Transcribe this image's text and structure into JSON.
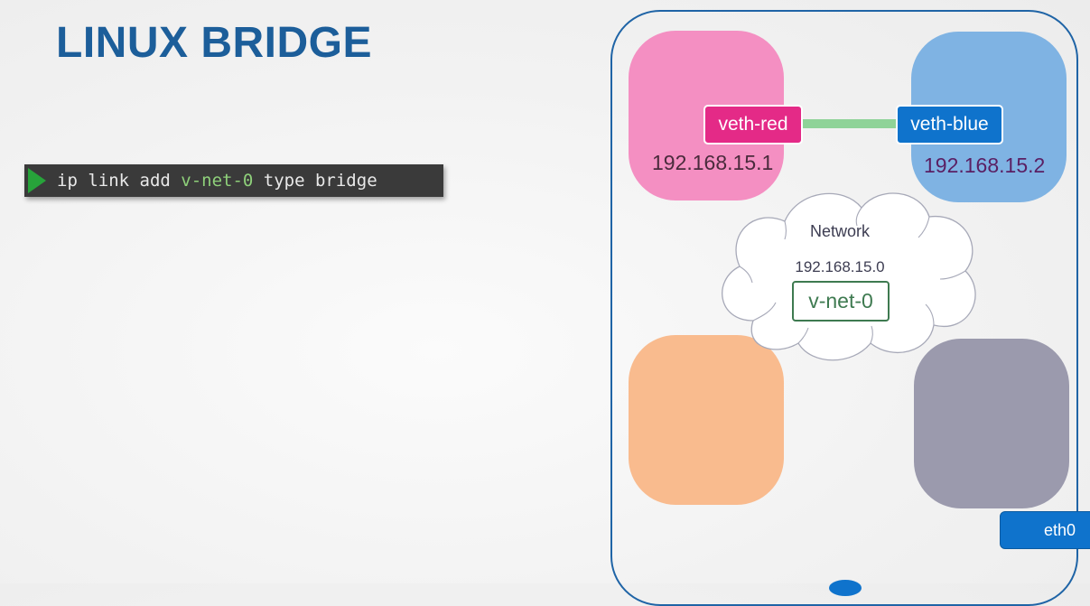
{
  "title": "LINUX BRIDGE",
  "terminal": {
    "prompt_icon": "play-triangle-icon",
    "cmd_part1": "ip link add ",
    "cmd_highlight": "v-net-0",
    "cmd_part2": " type bridge"
  },
  "diagram": {
    "veth_red": "veth-red",
    "veth_blue": "veth-blue",
    "ip_red": "192.168.15.1",
    "ip_blue": "192.168.15.2",
    "network_label": "Network",
    "network_ip": "192.168.15.0",
    "bridge_name": "v-net-0",
    "eth0": "eth0"
  },
  "colors": {
    "title": "#1c5e9a",
    "red_ns": "#f48fc2",
    "blue_ns": "#7fb3e3",
    "orange_ns": "#f9bb8e",
    "gray_ns": "#9b9aad",
    "link": "#8fd398"
  }
}
